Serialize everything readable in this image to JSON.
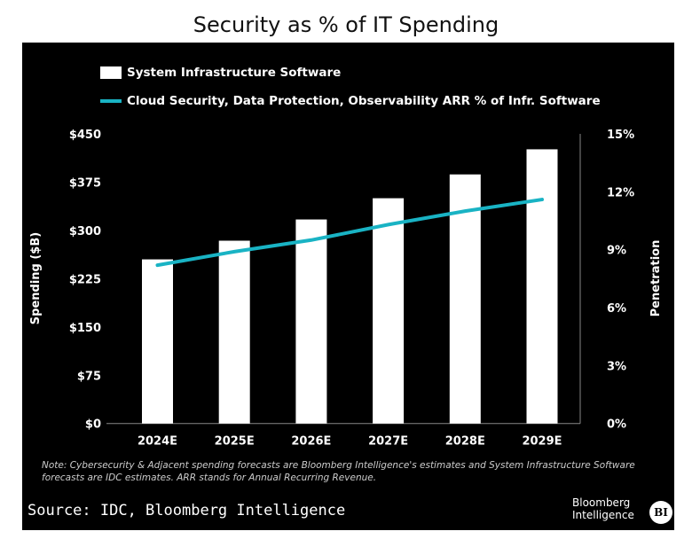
{
  "chart_data": {
    "type": "bar",
    "title": "Security as % of IT Spending",
    "categories": [
      "2024E",
      "2025E",
      "2026E",
      "2027E",
      "2028E",
      "2029E"
    ],
    "series": [
      {
        "name": "System Infrastructure Software",
        "kind": "bar",
        "axis": "left",
        "values": [
          255,
          284,
          317,
          350,
          387,
          426
        ],
        "color": "#ffffff"
      },
      {
        "name": "Cloud Security, Data Protection, Observability ARR % of Infr. Software",
        "kind": "line",
        "axis": "right",
        "values": [
          8.2,
          8.9,
          9.5,
          10.3,
          11.0,
          11.6
        ],
        "color": "#19b3c4"
      }
    ],
    "ylabel": "Spending ($B)",
    "y2label": "Penetration",
    "ylim": [
      0,
      450
    ],
    "y2lim": [
      0,
      15
    ],
    "yticks": [
      "$0",
      "$75",
      "$150",
      "$225",
      "$300",
      "$375",
      "$450"
    ],
    "y2ticks": [
      "0%",
      "3%",
      "6%",
      "9%",
      "12%",
      "15%"
    ],
    "legend": "top-left",
    "grid": false,
    "note": "Note: Cybersecurity & Adjacent spending forecasts are Bloomberg Intelligence's estimates and System Infrastructure Software forecasts are IDC estimates. ARR stands for Annual Recurring Revenue.",
    "source": "Source: IDC, Bloomberg Intelligence",
    "brand": "Bloomberg Intelligence",
    "brand_badge": "BI"
  }
}
